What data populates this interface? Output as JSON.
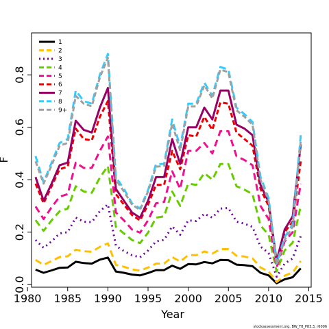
{
  "chart_data": {
    "type": "line",
    "xlabel": "Year",
    "ylabel": "F",
    "xlim": [
      1980.5,
      2015.3
    ],
    "ylim": [
      -0.01,
      0.96
    ],
    "xticks": [
      1980,
      1985,
      1990,
      1995,
      2000,
      2005,
      2010,
      2015
    ],
    "yticks": [
      0.0,
      0.2,
      0.4,
      0.6,
      0.8
    ],
    "grid": false,
    "legend_position": "top-left",
    "footer": "stockassessment.org, BW_T8_P83.3, r6006",
    "x": [
      1981,
      1982,
      1983,
      1984,
      1985,
      1986,
      1987,
      1988,
      1989,
      1990,
      1991,
      1992,
      1993,
      1994,
      1995,
      1996,
      1997,
      1998,
      1999,
      2000,
      2001,
      2002,
      2003,
      2004,
      2005,
      2006,
      2007,
      2008,
      2009,
      2010,
      2011,
      2012,
      2013,
      2014
    ],
    "series": [
      {
        "name": "1",
        "color": "#000000",
        "dash": "solid",
        "values": [
          0.057,
          0.045,
          0.054,
          0.064,
          0.065,
          0.087,
          0.082,
          0.08,
          0.095,
          0.103,
          0.05,
          0.045,
          0.038,
          0.035,
          0.044,
          0.055,
          0.055,
          0.072,
          0.06,
          0.078,
          0.077,
          0.086,
          0.081,
          0.094,
          0.093,
          0.076,
          0.074,
          0.07,
          0.045,
          0.035,
          0.005,
          0.02,
          0.028,
          0.062
        ]
      },
      {
        "name": "2",
        "color": "#FFC000",
        "dash": "long",
        "values": [
          0.094,
          0.075,
          0.09,
          0.105,
          0.108,
          0.133,
          0.127,
          0.125,
          0.144,
          0.157,
          0.075,
          0.068,
          0.058,
          0.053,
          0.065,
          0.08,
          0.08,
          0.105,
          0.088,
          0.112,
          0.112,
          0.126,
          0.118,
          0.135,
          0.135,
          0.11,
          0.107,
          0.1,
          0.065,
          0.05,
          0.01,
          0.034,
          0.046,
          0.09
        ]
      },
      {
        "name": "3",
        "color": "#7000A0",
        "dash": "dot",
        "values": [
          0.17,
          0.14,
          0.165,
          0.195,
          0.2,
          0.255,
          0.24,
          0.238,
          0.28,
          0.306,
          0.148,
          0.128,
          0.112,
          0.104,
          0.13,
          0.165,
          0.17,
          0.222,
          0.19,
          0.245,
          0.242,
          0.27,
          0.255,
          0.29,
          0.292,
          0.24,
          0.232,
          0.22,
          0.145,
          0.12,
          0.03,
          0.08,
          0.1,
          0.185
        ]
      },
      {
        "name": "4",
        "color": "#66CC00",
        "dash": "long",
        "values": [
          0.246,
          0.205,
          0.245,
          0.28,
          0.29,
          0.375,
          0.355,
          0.35,
          0.408,
          0.452,
          0.22,
          0.195,
          0.17,
          0.158,
          0.198,
          0.255,
          0.26,
          0.355,
          0.3,
          0.385,
          0.38,
          0.425,
          0.4,
          0.46,
          0.46,
          0.375,
          0.362,
          0.345,
          0.225,
          0.19,
          0.05,
          0.13,
          0.16,
          0.3
        ]
      },
      {
        "name": "5",
        "color": "#EE1090",
        "dash": "long",
        "values": [
          0.298,
          0.25,
          0.295,
          0.335,
          0.345,
          0.465,
          0.445,
          0.445,
          0.51,
          0.565,
          0.275,
          0.245,
          0.21,
          0.198,
          0.245,
          0.31,
          0.315,
          0.432,
          0.365,
          0.51,
          0.51,
          0.54,
          0.5,
          0.585,
          0.585,
          0.49,
          0.475,
          0.455,
          0.3,
          0.25,
          0.065,
          0.165,
          0.2,
          0.385
        ]
      },
      {
        "name": "6",
        "color": "#EE0000",
        "dash": "dash",
        "values": [
          0.385,
          0.31,
          0.375,
          0.44,
          0.45,
          0.595,
          0.555,
          0.55,
          0.64,
          0.7,
          0.345,
          0.305,
          0.265,
          0.245,
          0.305,
          0.38,
          0.38,
          0.51,
          0.44,
          0.57,
          0.565,
          0.64,
          0.59,
          0.695,
          0.69,
          0.58,
          0.555,
          0.53,
          0.365,
          0.3,
          0.08,
          0.2,
          0.24,
          0.47
        ]
      },
      {
        "name": "7",
        "color": "#990066",
        "dash": "solid",
        "values": [
          0.41,
          0.32,
          0.385,
          0.455,
          0.465,
          0.625,
          0.59,
          0.58,
          0.675,
          0.75,
          0.365,
          0.32,
          0.275,
          0.255,
          0.32,
          0.41,
          0.41,
          0.555,
          0.46,
          0.6,
          0.6,
          0.675,
          0.63,
          0.74,
          0.74,
          0.61,
          0.595,
          0.57,
          0.38,
          0.315,
          0.09,
          0.21,
          0.26,
          0.535
        ]
      },
      {
        "name": "8",
        "color": "#33CCFF",
        "dash": "long",
        "values": [
          0.49,
          0.39,
          0.465,
          0.54,
          0.555,
          0.74,
          0.7,
          0.69,
          0.8,
          0.88,
          0.41,
          0.365,
          0.31,
          0.29,
          0.36,
          0.46,
          0.46,
          0.63,
          0.525,
          0.69,
          0.69,
          0.77,
          0.72,
          0.83,
          0.82,
          0.675,
          0.65,
          0.62,
          0.41,
          0.33,
          0.08,
          0.18,
          0.23,
          0.57
        ]
      },
      {
        "name": "9+",
        "color": "#A0A0A0",
        "dash": "dash",
        "values": [
          0.47,
          0.385,
          0.455,
          0.53,
          0.54,
          0.72,
          0.69,
          0.68,
          0.79,
          0.865,
          0.4,
          0.355,
          0.305,
          0.285,
          0.355,
          0.45,
          0.452,
          0.615,
          0.51,
          0.68,
          0.68,
          0.76,
          0.71,
          0.82,
          0.81,
          0.665,
          0.64,
          0.61,
          0.4,
          0.32,
          0.075,
          0.17,
          0.22,
          0.55
        ]
      }
    ]
  }
}
